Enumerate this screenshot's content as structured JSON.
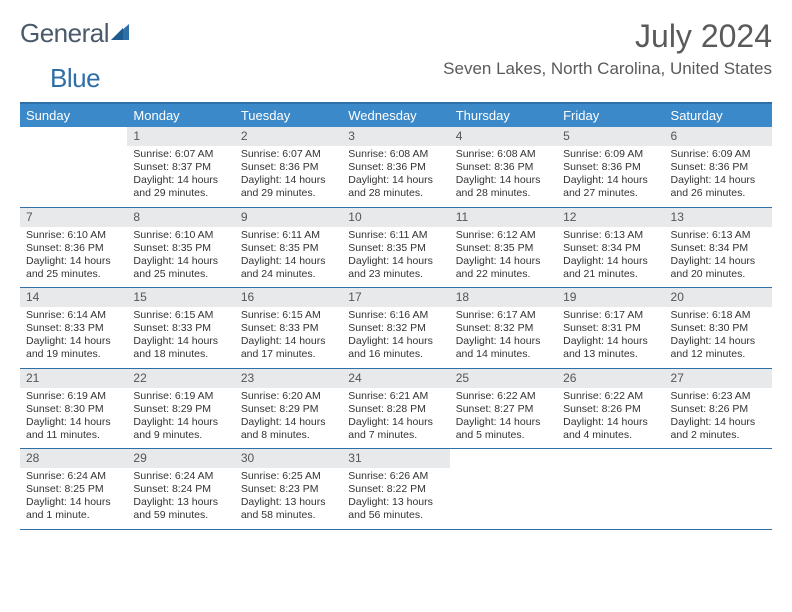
{
  "brand": {
    "part1": "General",
    "part2": "Blue"
  },
  "title": "July 2024",
  "location": "Seven Lakes, North Carolina, United States",
  "colors": {
    "accent": "#3b89c9",
    "rule": "#2f6fa8",
    "daynum_bg": "#e7e9eb",
    "text": "#333333",
    "header_text": "#5a5a5a"
  },
  "day_names": [
    "Sunday",
    "Monday",
    "Tuesday",
    "Wednesday",
    "Thursday",
    "Friday",
    "Saturday"
  ],
  "weeks": [
    [
      null,
      {
        "n": "1",
        "sr": "Sunrise: 6:07 AM",
        "ss": "Sunset: 8:37 PM",
        "dl": "Daylight: 14 hours and 29 minutes."
      },
      {
        "n": "2",
        "sr": "Sunrise: 6:07 AM",
        "ss": "Sunset: 8:36 PM",
        "dl": "Daylight: 14 hours and 29 minutes."
      },
      {
        "n": "3",
        "sr": "Sunrise: 6:08 AM",
        "ss": "Sunset: 8:36 PM",
        "dl": "Daylight: 14 hours and 28 minutes."
      },
      {
        "n": "4",
        "sr": "Sunrise: 6:08 AM",
        "ss": "Sunset: 8:36 PM",
        "dl": "Daylight: 14 hours and 28 minutes."
      },
      {
        "n": "5",
        "sr": "Sunrise: 6:09 AM",
        "ss": "Sunset: 8:36 PM",
        "dl": "Daylight: 14 hours and 27 minutes."
      },
      {
        "n": "6",
        "sr": "Sunrise: 6:09 AM",
        "ss": "Sunset: 8:36 PM",
        "dl": "Daylight: 14 hours and 26 minutes."
      }
    ],
    [
      {
        "n": "7",
        "sr": "Sunrise: 6:10 AM",
        "ss": "Sunset: 8:36 PM",
        "dl": "Daylight: 14 hours and 25 minutes."
      },
      {
        "n": "8",
        "sr": "Sunrise: 6:10 AM",
        "ss": "Sunset: 8:35 PM",
        "dl": "Daylight: 14 hours and 25 minutes."
      },
      {
        "n": "9",
        "sr": "Sunrise: 6:11 AM",
        "ss": "Sunset: 8:35 PM",
        "dl": "Daylight: 14 hours and 24 minutes."
      },
      {
        "n": "10",
        "sr": "Sunrise: 6:11 AM",
        "ss": "Sunset: 8:35 PM",
        "dl": "Daylight: 14 hours and 23 minutes."
      },
      {
        "n": "11",
        "sr": "Sunrise: 6:12 AM",
        "ss": "Sunset: 8:35 PM",
        "dl": "Daylight: 14 hours and 22 minutes."
      },
      {
        "n": "12",
        "sr": "Sunrise: 6:13 AM",
        "ss": "Sunset: 8:34 PM",
        "dl": "Daylight: 14 hours and 21 minutes."
      },
      {
        "n": "13",
        "sr": "Sunrise: 6:13 AM",
        "ss": "Sunset: 8:34 PM",
        "dl": "Daylight: 14 hours and 20 minutes."
      }
    ],
    [
      {
        "n": "14",
        "sr": "Sunrise: 6:14 AM",
        "ss": "Sunset: 8:33 PM",
        "dl": "Daylight: 14 hours and 19 minutes."
      },
      {
        "n": "15",
        "sr": "Sunrise: 6:15 AM",
        "ss": "Sunset: 8:33 PM",
        "dl": "Daylight: 14 hours and 18 minutes."
      },
      {
        "n": "16",
        "sr": "Sunrise: 6:15 AM",
        "ss": "Sunset: 8:33 PM",
        "dl": "Daylight: 14 hours and 17 minutes."
      },
      {
        "n": "17",
        "sr": "Sunrise: 6:16 AM",
        "ss": "Sunset: 8:32 PM",
        "dl": "Daylight: 14 hours and 16 minutes."
      },
      {
        "n": "18",
        "sr": "Sunrise: 6:17 AM",
        "ss": "Sunset: 8:32 PM",
        "dl": "Daylight: 14 hours and 14 minutes."
      },
      {
        "n": "19",
        "sr": "Sunrise: 6:17 AM",
        "ss": "Sunset: 8:31 PM",
        "dl": "Daylight: 14 hours and 13 minutes."
      },
      {
        "n": "20",
        "sr": "Sunrise: 6:18 AM",
        "ss": "Sunset: 8:30 PM",
        "dl": "Daylight: 14 hours and 12 minutes."
      }
    ],
    [
      {
        "n": "21",
        "sr": "Sunrise: 6:19 AM",
        "ss": "Sunset: 8:30 PM",
        "dl": "Daylight: 14 hours and 11 minutes."
      },
      {
        "n": "22",
        "sr": "Sunrise: 6:19 AM",
        "ss": "Sunset: 8:29 PM",
        "dl": "Daylight: 14 hours and 9 minutes."
      },
      {
        "n": "23",
        "sr": "Sunrise: 6:20 AM",
        "ss": "Sunset: 8:29 PM",
        "dl": "Daylight: 14 hours and 8 minutes."
      },
      {
        "n": "24",
        "sr": "Sunrise: 6:21 AM",
        "ss": "Sunset: 8:28 PM",
        "dl": "Daylight: 14 hours and 7 minutes."
      },
      {
        "n": "25",
        "sr": "Sunrise: 6:22 AM",
        "ss": "Sunset: 8:27 PM",
        "dl": "Daylight: 14 hours and 5 minutes."
      },
      {
        "n": "26",
        "sr": "Sunrise: 6:22 AM",
        "ss": "Sunset: 8:26 PM",
        "dl": "Daylight: 14 hours and 4 minutes."
      },
      {
        "n": "27",
        "sr": "Sunrise: 6:23 AM",
        "ss": "Sunset: 8:26 PM",
        "dl": "Daylight: 14 hours and 2 minutes."
      }
    ],
    [
      {
        "n": "28",
        "sr": "Sunrise: 6:24 AM",
        "ss": "Sunset: 8:25 PM",
        "dl": "Daylight: 14 hours and 1 minute."
      },
      {
        "n": "29",
        "sr": "Sunrise: 6:24 AM",
        "ss": "Sunset: 8:24 PM",
        "dl": "Daylight: 13 hours and 59 minutes."
      },
      {
        "n": "30",
        "sr": "Sunrise: 6:25 AM",
        "ss": "Sunset: 8:23 PM",
        "dl": "Daylight: 13 hours and 58 minutes."
      },
      {
        "n": "31",
        "sr": "Sunrise: 6:26 AM",
        "ss": "Sunset: 8:22 PM",
        "dl": "Daylight: 13 hours and 56 minutes."
      },
      null,
      null,
      null
    ]
  ]
}
